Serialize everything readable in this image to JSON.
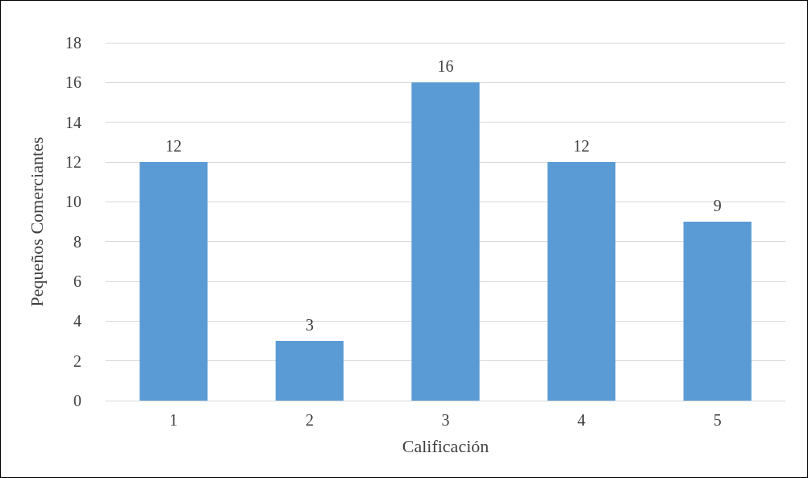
{
  "chart_data": {
    "type": "bar",
    "xlabel": "Calificación",
    "ylabel": "Pequeños Comerciantes",
    "categories": [
      "1",
      "2",
      "3",
      "4",
      "5"
    ],
    "values": [
      12,
      3,
      16,
      12,
      9
    ],
    "color": "#5b9bd5",
    "ylim": [
      0,
      18
    ],
    "yticks": [
      0,
      2,
      4,
      6,
      8,
      10,
      12,
      14,
      16,
      18
    ],
    "grid": "y",
    "data_labels": true
  }
}
